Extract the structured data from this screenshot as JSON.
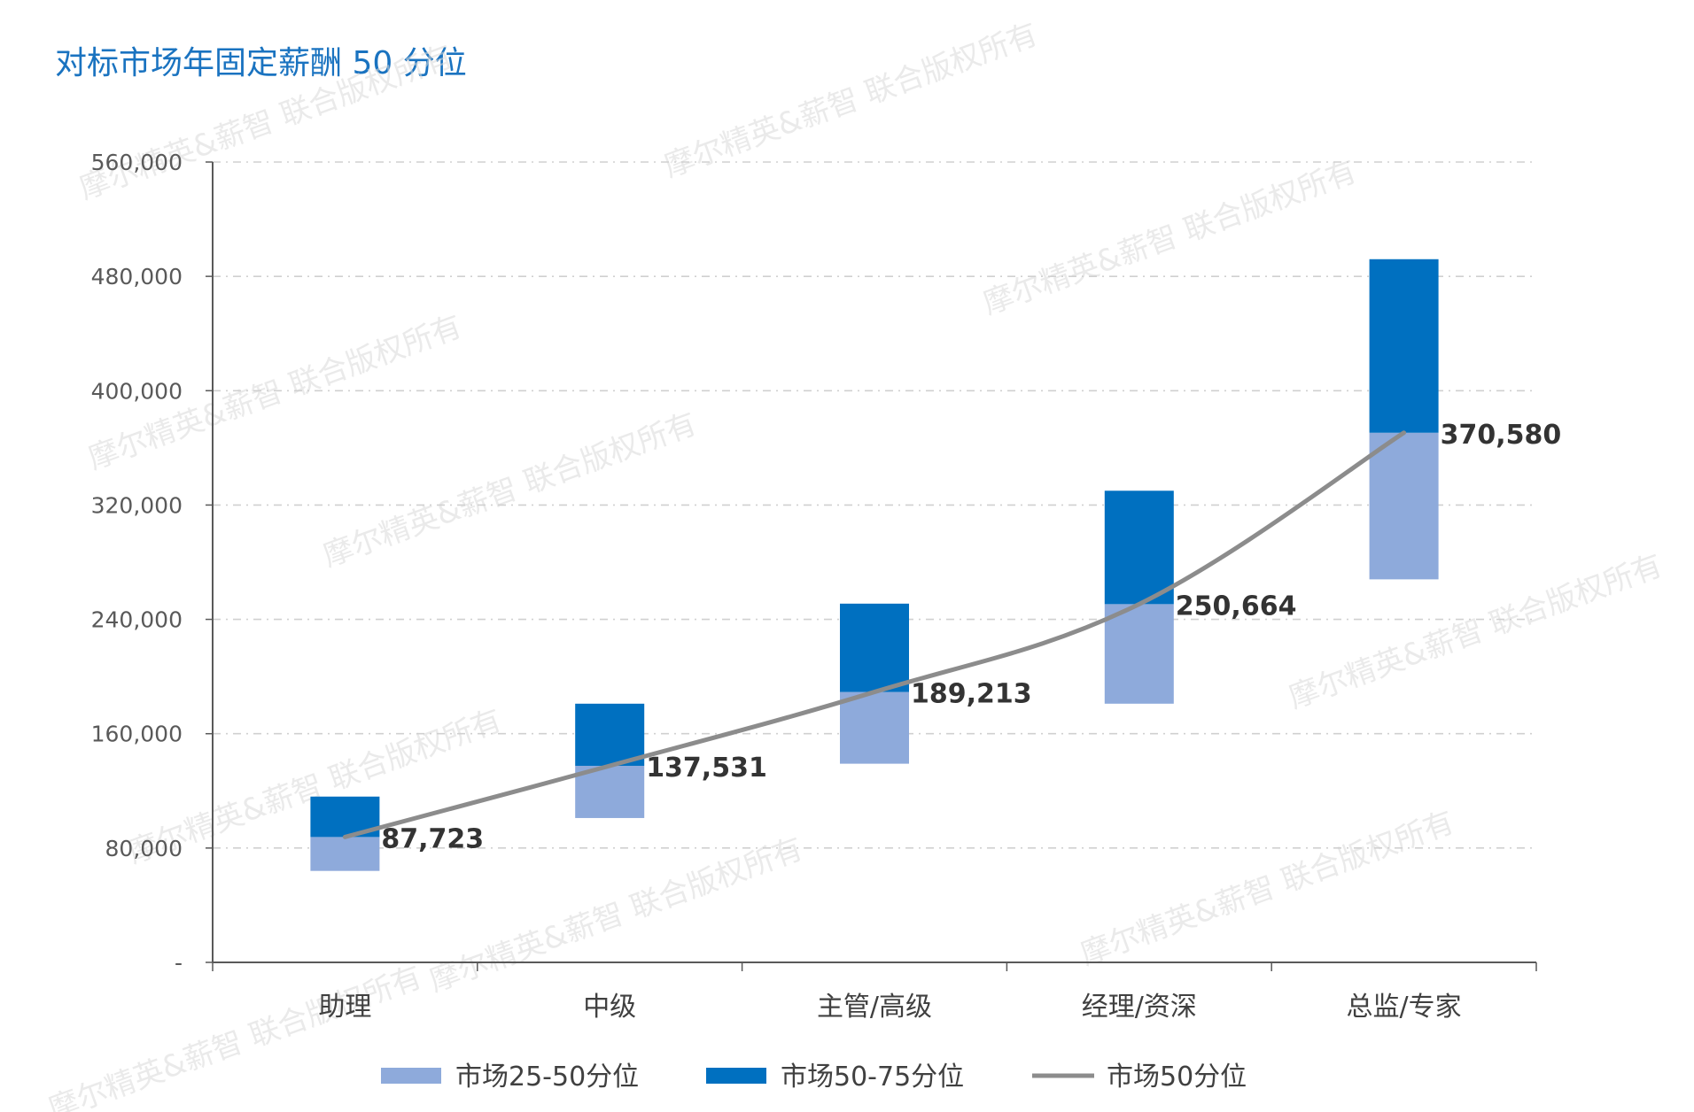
{
  "title": "对标市场年固定薪酬 50 分位",
  "watermark": "摩尔精英&薪智 联合版权所有",
  "colors": {
    "title": "#1a73c0",
    "lower_segment": "#8eaadb",
    "upper_segment": "#0070c0",
    "median_line": "#8c8c8c",
    "grid": "#d0d0d0",
    "axis": "#595959"
  },
  "chart_data": {
    "type": "bar",
    "subtype": "floating-stacked-bar-with-line",
    "categories": [
      "助理",
      "中级",
      "主管/高级",
      "经理/资深",
      "总监/专家"
    ],
    "y_ticks": [
      "-",
      "80,000",
      "160,000",
      "240,000",
      "320,000",
      "400,000",
      "480,000",
      "560,000"
    ],
    "ylim": [
      0,
      560000
    ],
    "grid": true,
    "legend_position": "bottom",
    "series": [
      {
        "name": "市场25-50分位",
        "kind": "bar",
        "color": "#8eaadb",
        "ranges": [
          [
            64000,
            87723
          ],
          [
            101000,
            137531
          ],
          [
            139000,
            189213
          ],
          [
            181000,
            250664
          ],
          [
            268000,
            370580
          ]
        ]
      },
      {
        "name": "市场50-75分位",
        "kind": "bar",
        "color": "#0070c0",
        "ranges": [
          [
            87723,
            116000
          ],
          [
            137531,
            181000
          ],
          [
            189213,
            251000
          ],
          [
            250664,
            330000
          ],
          [
            370580,
            492000
          ]
        ]
      },
      {
        "name": "市场50分位",
        "kind": "line",
        "color": "#8c8c8c",
        "values": [
          87723,
          137531,
          189213,
          250664,
          370580
        ]
      }
    ],
    "data_labels": [
      "87,723",
      "137,531",
      "189,213",
      "250,664",
      "370,580"
    ]
  }
}
